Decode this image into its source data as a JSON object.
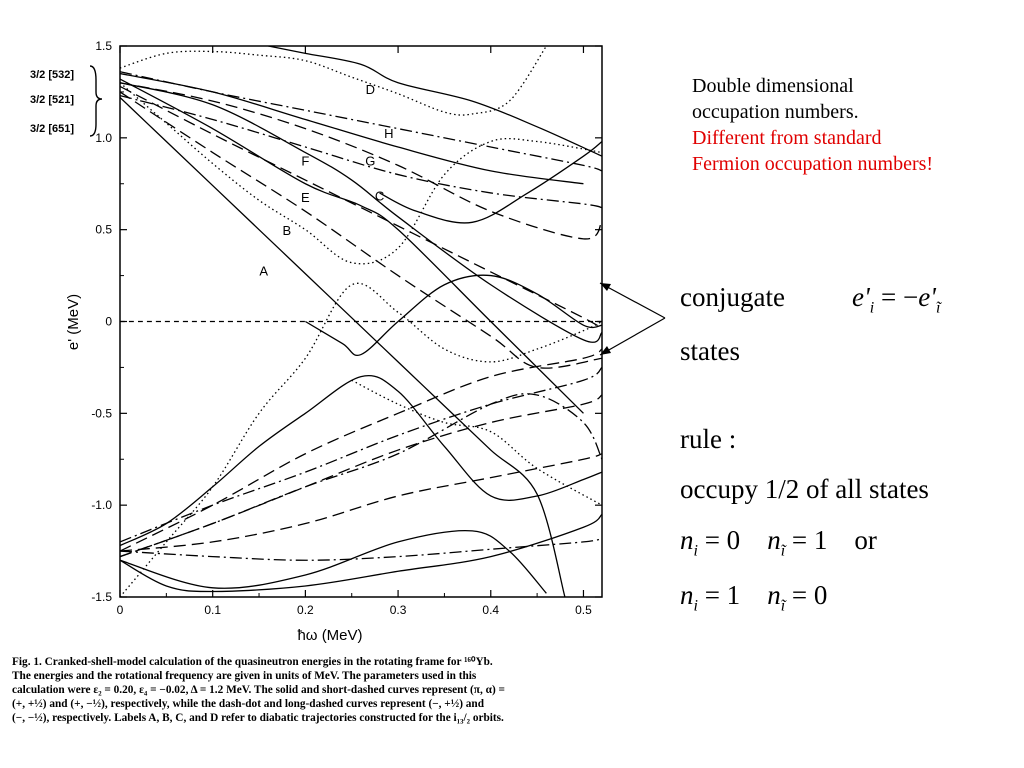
{
  "chart_data": {
    "type": "line",
    "xlabel": "ħω (MeV)",
    "ylabel": "e' (MeV)",
    "xlim": [
      0,
      0.52
    ],
    "ylim": [
      -1.5,
      1.5
    ],
    "x_ticks": [
      "0",
      "0.1",
      "0.2",
      "0.3",
      "0.4",
      "0.5"
    ],
    "y_ticks": [
      "1.5",
      "1.0",
      "0.5",
      "0",
      "-0.5",
      "-1.0",
      "-1.5"
    ],
    "grid": false,
    "orbital_labels": [
      "3/2 [532]",
      "3/2 [521]",
      "3/2 [651]"
    ],
    "curve_labels": [
      {
        "text": "A",
        "x": 0.155,
        "y": 0.25
      },
      {
        "text": "B",
        "x": 0.18,
        "y": 0.47
      },
      {
        "text": "E",
        "x": 0.2,
        "y": 0.65
      },
      {
        "text": "F",
        "x": 0.2,
        "y": 0.85
      },
      {
        "text": "G",
        "x": 0.27,
        "y": 0.85
      },
      {
        "text": "C",
        "x": 0.28,
        "y": 0.66
      },
      {
        "text": "H",
        "x": 0.29,
        "y": 1.0
      },
      {
        "text": "D",
        "x": 0.27,
        "y": 1.24
      }
    ],
    "series": [
      {
        "style": "solid",
        "x": [
          0,
          0.05,
          0.1,
          0.15,
          0.2,
          0.25,
          0.3,
          0.35,
          0.4,
          0.45,
          0.48
        ],
        "y": [
          1.22,
          0.98,
          0.74,
          0.5,
          0.26,
          0.02,
          -0.22,
          -0.46,
          -0.7,
          -0.94,
          -1.5
        ]
      },
      {
        "style": "solid",
        "x": [
          0,
          0.1,
          0.2,
          0.25,
          0.3,
          0.4,
          0.5,
          0.52
        ],
        "y": [
          1.3,
          1.18,
          0.92,
          0.77,
          0.57,
          0.2,
          -0.1,
          -0.06
        ]
      },
      {
        "style": "solid",
        "x": [
          0,
          0.1,
          0.2,
          0.26,
          0.3,
          0.4,
          0.5
        ],
        "y": [
          1.32,
          1.05,
          0.75,
          0.63,
          0.5,
          0.0,
          -0.5
        ]
      },
      {
        "style": "solid",
        "x": [
          0,
          0.1,
          0.2,
          0.3,
          0.4,
          0.5
        ],
        "y": [
          1.35,
          1.25,
          1.1,
          0.95,
          0.82,
          0.75
        ]
      },
      {
        "style": "solid",
        "x": [
          0.16,
          0.2,
          0.26,
          0.3,
          0.38,
          0.45,
          0.52
        ],
        "y": [
          1.5,
          1.46,
          1.4,
          1.3,
          1.2,
          1.06,
          0.9
        ]
      },
      {
        "style": "solid",
        "x": [
          0.28,
          0.32,
          0.38,
          0.44,
          0.5,
          0.52
        ],
        "y": [
          0.7,
          0.6,
          0.54,
          0.7,
          0.9,
          0.98
        ]
      },
      {
        "style": "solid",
        "x": [
          0.2,
          0.24,
          0.26,
          0.3,
          0.35,
          0.4,
          0.45,
          0.5,
          0.52
        ],
        "y": [
          0.0,
          -0.12,
          -0.18,
          0.0,
          0.2,
          0.25,
          0.15,
          -0.02,
          -0.02
        ]
      },
      {
        "style": "solid",
        "x": [
          0,
          0.05,
          0.1,
          0.15,
          0.2,
          0.26,
          0.3,
          0.35,
          0.4,
          0.45,
          0.5,
          0.52
        ],
        "y": [
          -1.22,
          -1.1,
          -0.9,
          -0.68,
          -0.5,
          -0.3,
          -0.38,
          -0.68,
          -0.95,
          -0.95,
          -0.86,
          -0.82
        ]
      },
      {
        "style": "solid",
        "x": [
          0,
          0.1,
          0.2,
          0.3,
          0.38,
          0.42,
          0.46
        ],
        "y": [
          -1.3,
          -1.45,
          -1.38,
          -1.2,
          -1.14,
          -1.25,
          -1.48
        ]
      },
      {
        "style": "solid",
        "x": [
          0,
          0.05,
          0.1,
          0.2,
          0.3,
          0.4,
          0.5,
          0.52
        ],
        "y": [
          -1.3,
          -1.44,
          -1.47,
          -1.44,
          -1.36,
          -1.28,
          -1.12,
          -1.05
        ]
      },
      {
        "style": "dotted",
        "x": [
          0,
          0.05,
          0.1,
          0.15,
          0.2,
          0.25,
          0.3,
          0.35,
          0.38,
          0.42,
          0.46
        ],
        "y": [
          1.38,
          1.46,
          1.47,
          1.45,
          1.42,
          1.33,
          1.24,
          1.14,
          1.13,
          1.2,
          1.5
        ]
      },
      {
        "style": "dotted",
        "x": [
          0,
          0.05,
          0.1,
          0.15,
          0.2,
          0.25,
          0.3,
          0.35,
          0.4,
          0.45,
          0.52
        ],
        "y": [
          1.3,
          1.08,
          0.86,
          0.66,
          0.5,
          0.32,
          0.4,
          0.8,
          0.98,
          0.98,
          0.92
        ]
      },
      {
        "style": "dotted",
        "x": [
          0,
          0.05,
          0.1,
          0.15,
          0.2,
          0.25,
          0.3,
          0.35,
          0.4,
          0.45,
          0.5,
          0.52
        ],
        "y": [
          -1.5,
          -1.2,
          -0.9,
          -0.5,
          -0.2,
          0.2,
          0.05,
          -0.15,
          -0.22,
          -0.15,
          -0.05,
          -0.0
        ]
      },
      {
        "style": "dotted",
        "x": [
          0.25,
          0.3,
          0.35,
          0.4,
          0.45,
          0.52
        ],
        "y": [
          -0.32,
          -0.45,
          -0.55,
          -0.6,
          -0.8,
          -1.0
        ]
      },
      {
        "style": "shortdash",
        "x": [
          0,
          0.52
        ],
        "y": [
          0,
          0
        ]
      },
      {
        "style": "longdash",
        "x": [
          0,
          0.1,
          0.2,
          0.3,
          0.4,
          0.5,
          0.52
        ],
        "y": [
          1.28,
          1.02,
          0.77,
          0.52,
          0.27,
          0.02,
          -0.04
        ]
      },
      {
        "style": "longdash",
        "x": [
          0,
          0.1,
          0.2,
          0.3,
          0.4,
          0.45,
          0.52
        ],
        "y": [
          1.25,
          0.92,
          0.6,
          0.25,
          -0.08,
          -0.25,
          -0.2
        ]
      },
      {
        "style": "longdash",
        "x": [
          0,
          0.1,
          0.2,
          0.3,
          0.4,
          0.5,
          0.52
        ],
        "y": [
          1.3,
          1.2,
          1.05,
          0.85,
          0.6,
          0.45,
          0.55
        ]
      },
      {
        "style": "longdash",
        "x": [
          0,
          0.1,
          0.2,
          0.3,
          0.4,
          0.5,
          0.52
        ],
        "y": [
          -1.25,
          -1.0,
          -0.72,
          -0.5,
          -0.3,
          -0.2,
          -0.15
        ]
      },
      {
        "style": "longdash",
        "x": [
          0,
          0.1,
          0.2,
          0.3,
          0.4,
          0.5,
          0.52
        ],
        "y": [
          -1.28,
          -1.1,
          -0.9,
          -0.7,
          -0.55,
          -0.45,
          -0.4
        ]
      },
      {
        "style": "longdash",
        "x": [
          0,
          0.1,
          0.2,
          0.3,
          0.4,
          0.5,
          0.52
        ],
        "y": [
          -1.25,
          -1.2,
          -1.1,
          -0.95,
          -0.85,
          -0.75,
          -0.72
        ]
      },
      {
        "style": "dashdot",
        "x": [
          0,
          0.1,
          0.2,
          0.3,
          0.4,
          0.5,
          0.52
        ],
        "y": [
          1.36,
          1.25,
          1.15,
          1.05,
          0.95,
          0.85,
          0.82
        ]
      },
      {
        "style": "dashdot",
        "x": [
          0,
          0.1,
          0.2,
          0.3,
          0.4,
          0.5,
          0.52
        ],
        "y": [
          1.23,
          1.1,
          0.95,
          0.8,
          0.7,
          0.64,
          0.62
        ]
      },
      {
        "style": "dashdot",
        "x": [
          0,
          0.1,
          0.2,
          0.3,
          0.4,
          0.5,
          0.52
        ],
        "y": [
          -1.2,
          -1.0,
          -0.82,
          -0.62,
          -0.45,
          -0.32,
          -0.25
        ]
      },
      {
        "style": "dashdot",
        "x": [
          0,
          0.1,
          0.2,
          0.3,
          0.4,
          0.45,
          0.5,
          0.52
        ],
        "y": [
          -1.28,
          -1.1,
          -0.9,
          -0.72,
          -0.45,
          -0.4,
          -0.55,
          -0.75
        ]
      },
      {
        "style": "dashdot",
        "x": [
          0,
          0.1,
          0.2,
          0.3,
          0.4,
          0.5,
          0.52
        ],
        "y": [
          -1.25,
          -1.28,
          -1.3,
          -1.28,
          -1.24,
          -1.2,
          -1.18
        ]
      }
    ]
  },
  "caption": {
    "lines": [
      "Fig. 1.  Cranked-shell-model calculation of the quasineutron energies in the rotating frame for ¹⁶⁰Yb.",
      "The energies and the rotational frequency are given in units of MeV. The parameters used in this",
      "calculation were ε₂ = 0.20, ε₄ = −0.02, Δ = 1.2 MeV. The solid and short-dashed curves represent (π, α) =",
      "(+, +½) and (+, −½), respectively, while the dash-dot and long-dashed curves represent (−, +½) and",
      "(−, −½), respectively. Labels A, B, C, and D refer to diabatic trajectories constructed for the i₁₃/₂ orbits."
    ]
  },
  "note": {
    "line1": "Double dimensional",
    "line2": "occupation numbers.",
    "line3": "Different from standard",
    "line4": "Fermion occupation numbers!",
    "red_color": "#e00000"
  },
  "math": {
    "conjugate": "conjugate",
    "states": "states",
    "eq_e": "e'",
    "eq_i": "i",
    "eq_eq": "= −",
    "eq_e2": "e'",
    "eq_itilde": "ĩ",
    "rule": "rule :",
    "occupy": "occupy 1/2 of  all states",
    "n": "n",
    "sub_i": "i",
    "sub_itilde": "ĩ",
    "eq0": "= 0",
    "eq1": "= 1",
    "or": "or"
  }
}
